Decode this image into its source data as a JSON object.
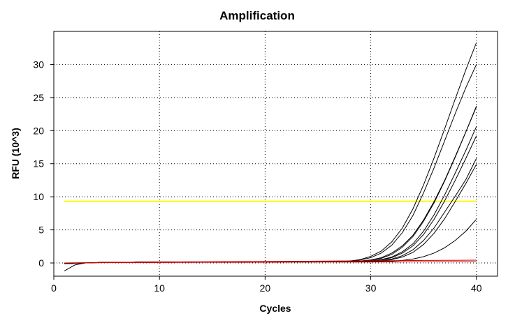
{
  "chart_data": {
    "type": "line",
    "title": "Amplification",
    "xlabel": "Cycles",
    "ylabel": "RFU (10^3)",
    "xlim": [
      0,
      42
    ],
    "ylim": [
      -2,
      35
    ],
    "xticks": [
      0,
      10,
      20,
      30,
      40
    ],
    "yticks": [
      0,
      5,
      10,
      15,
      20,
      25,
      30
    ],
    "grid": true,
    "legend": "none",
    "x": [
      1,
      2,
      3,
      4,
      5,
      6,
      7,
      8,
      9,
      10,
      11,
      12,
      13,
      14,
      15,
      16,
      17,
      18,
      19,
      20,
      21,
      22,
      23,
      24,
      25,
      26,
      27,
      28,
      29,
      30,
      31,
      32,
      33,
      34,
      35,
      36,
      37,
      38,
      39,
      40
    ],
    "threshold": {
      "value": 9.3,
      "color": "#ffff00"
    },
    "colors": {
      "sample": "#000000",
      "negative": "#cc0000"
    },
    "series": [
      {
        "color": "#000000",
        "values": [
          -1.2,
          -0.3,
          0,
          0.05,
          0.08,
          0.1,
          0.1,
          0.12,
          0.12,
          0.13,
          0.13,
          0.14,
          0.14,
          0.15,
          0.15,
          0.15,
          0.16,
          0.16,
          0.16,
          0.17,
          0.17,
          0.17,
          0.18,
          0.18,
          0.19,
          0.2,
          0.22,
          0.3,
          0.5,
          1.0,
          1.8,
          3.2,
          5.3,
          8.2,
          11.8,
          15.9,
          20.3,
          24.8,
          29.2,
          33.3
        ]
      },
      {
        "color": "#000000",
        "values": [
          -0.1,
          -0.05,
          0,
          0.05,
          0.08,
          0.1,
          0.1,
          0.12,
          0.12,
          0.13,
          0.13,
          0.14,
          0.14,
          0.15,
          0.15,
          0.15,
          0.16,
          0.16,
          0.16,
          0.17,
          0.17,
          0.17,
          0.18,
          0.18,
          0.19,
          0.2,
          0.22,
          0.28,
          0.45,
          0.8,
          1.5,
          2.7,
          4.6,
          7.2,
          10.6,
          14.4,
          18.5,
          22.6,
          26.5,
          30.0
        ]
      },
      {
        "color": "#000000",
        "values": [
          -0.1,
          -0.05,
          0,
          0.05,
          0.08,
          0.1,
          0.1,
          0.12,
          0.12,
          0.13,
          0.13,
          0.14,
          0.14,
          0.15,
          0.15,
          0.15,
          0.16,
          0.16,
          0.16,
          0.17,
          0.17,
          0.17,
          0.18,
          0.18,
          0.19,
          0.2,
          0.21,
          0.24,
          0.3,
          0.45,
          0.8,
          1.5,
          2.6,
          4.2,
          6.5,
          9.3,
          12.5,
          16.1,
          19.8,
          23.6
        ]
      },
      {
        "color": "#000000",
        "values": [
          -0.1,
          -0.05,
          0,
          0.05,
          0.08,
          0.1,
          0.1,
          0.12,
          0.12,
          0.13,
          0.13,
          0.14,
          0.14,
          0.15,
          0.15,
          0.15,
          0.16,
          0.16,
          0.16,
          0.17,
          0.17,
          0.17,
          0.18,
          0.18,
          0.19,
          0.2,
          0.21,
          0.23,
          0.28,
          0.4,
          0.7,
          1.3,
          2.4,
          4.0,
          6.3,
          9.1,
          12.4,
          16.0,
          19.8,
          23.7
        ]
      },
      {
        "color": "#000000",
        "values": [
          -0.1,
          -0.05,
          0,
          0.05,
          0.08,
          0.1,
          0.1,
          0.12,
          0.12,
          0.13,
          0.13,
          0.14,
          0.14,
          0.15,
          0.15,
          0.15,
          0.16,
          0.16,
          0.16,
          0.17,
          0.17,
          0.17,
          0.18,
          0.18,
          0.19,
          0.2,
          0.2,
          0.22,
          0.25,
          0.32,
          0.5,
          0.9,
          1.7,
          2.9,
          4.8,
          7.3,
          10.3,
          13.6,
          17.0,
          20.6
        ]
      },
      {
        "color": "#000000",
        "values": [
          -0.1,
          -0.05,
          0,
          0.05,
          0.08,
          0.1,
          0.1,
          0.12,
          0.12,
          0.13,
          0.13,
          0.14,
          0.14,
          0.15,
          0.15,
          0.15,
          0.16,
          0.16,
          0.16,
          0.17,
          0.17,
          0.17,
          0.18,
          0.18,
          0.19,
          0.19,
          0.2,
          0.21,
          0.24,
          0.3,
          0.45,
          0.8,
          1.5,
          2.6,
          4.3,
          6.6,
          9.4,
          12.5,
          15.8,
          19.2
        ]
      },
      {
        "color": "#000000",
        "values": [
          -0.1,
          -0.05,
          0,
          0.05,
          0.08,
          0.1,
          0.1,
          0.12,
          0.12,
          0.13,
          0.13,
          0.14,
          0.14,
          0.15,
          0.15,
          0.15,
          0.16,
          0.16,
          0.16,
          0.17,
          0.17,
          0.17,
          0.18,
          0.18,
          0.18,
          0.19,
          0.19,
          0.2,
          0.22,
          0.26,
          0.35,
          0.6,
          1.1,
          2.0,
          3.4,
          5.3,
          7.7,
          10.1,
          12.6,
          15.8
        ]
      },
      {
        "color": "#000000",
        "values": [
          -0.1,
          -0.05,
          0,
          0.05,
          0.08,
          0.1,
          0.1,
          0.12,
          0.12,
          0.13,
          0.13,
          0.14,
          0.14,
          0.15,
          0.15,
          0.15,
          0.16,
          0.16,
          0.16,
          0.17,
          0.17,
          0.17,
          0.17,
          0.18,
          0.18,
          0.18,
          0.19,
          0.2,
          0.21,
          0.24,
          0.3,
          0.5,
          0.9,
          1.6,
          2.8,
          4.5,
          6.7,
          9.3,
          12.0,
          14.9
        ]
      },
      {
        "color": "#000000",
        "values": [
          -0.1,
          -0.05,
          0,
          0.05,
          0.08,
          0.1,
          0.1,
          0.12,
          0.12,
          0.13,
          0.13,
          0.14,
          0.14,
          0.15,
          0.15,
          0.15,
          0.16,
          0.16,
          0.16,
          0.17,
          0.17,
          0.17,
          0.17,
          0.18,
          0.18,
          0.18,
          0.19,
          0.19,
          0.2,
          0.2,
          0.22,
          0.27,
          0.38,
          0.6,
          0.95,
          1.5,
          2.3,
          3.4,
          4.8,
          6.6
        ]
      },
      {
        "color": "#cc0000",
        "values": [
          0,
          0.02,
          0.04,
          0.06,
          0.08,
          0.1,
          0.11,
          0.12,
          0.13,
          0.14,
          0.15,
          0.16,
          0.17,
          0.18,
          0.19,
          0.2,
          0.2,
          0.21,
          0.22,
          0.23,
          0.24,
          0.25,
          0.26,
          0.27,
          0.28,
          0.29,
          0.3,
          0.31,
          0.32,
          0.33,
          0.34,
          0.35,
          0.36,
          0.37,
          0.38,
          0.39,
          0.4,
          0.4,
          0.41,
          0.42
        ]
      },
      {
        "color": "#cc0000",
        "values": [
          0,
          0.01,
          0.02,
          0.03,
          0.04,
          0.05,
          0.05,
          0.06,
          0.06,
          0.07,
          0.07,
          0.08,
          0.08,
          0.09,
          0.09,
          0.1,
          0.1,
          0.1,
          0.11,
          0.11,
          0.11,
          0.12,
          0.12,
          0.12,
          0.13,
          0.13,
          0.13,
          0.14,
          0.14,
          0.14,
          0.15,
          0.15,
          0.15,
          0.16,
          0.16,
          0.16,
          0.17,
          0.17,
          0.17,
          0.18
        ]
      }
    ]
  }
}
